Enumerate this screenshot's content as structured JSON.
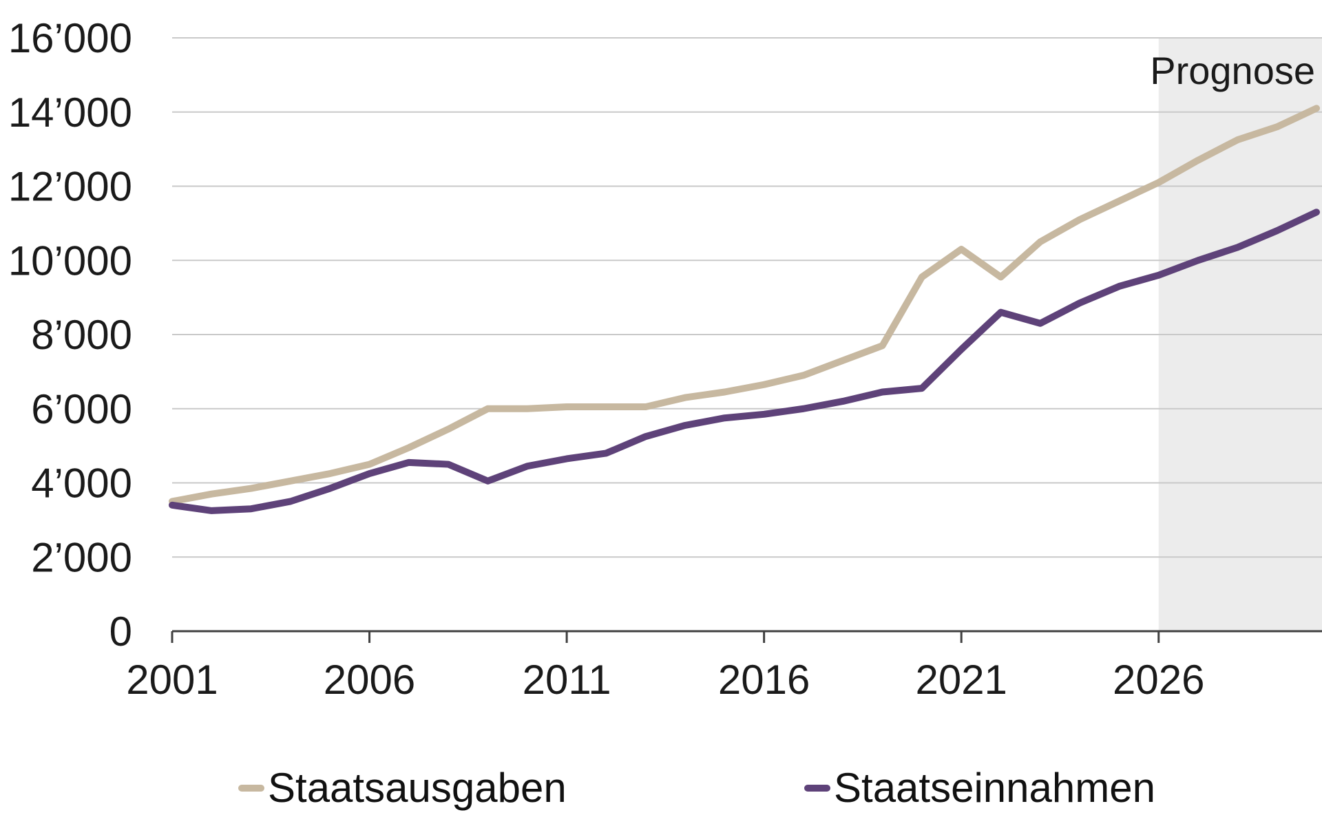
{
  "chart_data": {
    "type": "line",
    "title": "",
    "xlabel": "",
    "ylabel": "",
    "x": [
      2001,
      2002,
      2003,
      2004,
      2005,
      2006,
      2007,
      2008,
      2009,
      2010,
      2011,
      2012,
      2013,
      2014,
      2015,
      2016,
      2017,
      2018,
      2019,
      2020,
      2021,
      2022,
      2023,
      2024,
      2025,
      2026,
      2027,
      2028,
      2029,
      2030
    ],
    "series": [
      {
        "name": "Staatsausgaben",
        "color": "#c7b8a0",
        "values": [
          3500,
          3700,
          3850,
          4050,
          4250,
          4500,
          4950,
          5450,
          6000,
          6000,
          6050,
          6050,
          6050,
          6300,
          6450,
          6650,
          6900,
          7300,
          7700,
          9550,
          10300,
          9550,
          10500,
          11100,
          11600,
          12100,
          12700,
          13250,
          13600,
          14100
        ]
      },
      {
        "name": "Staatseinnahmen",
        "color": "#5e4279",
        "values": [
          3400,
          3250,
          3300,
          3500,
          3850,
          4250,
          4550,
          4500,
          4050,
          4450,
          4650,
          4800,
          5250,
          5550,
          5750,
          5850,
          6000,
          6200,
          6450,
          6550,
          7600,
          8600,
          8300,
          8850,
          9300,
          9600,
          10000,
          10350,
          10800,
          11300
        ]
      }
    ],
    "ylim": [
      0,
      16000
    ],
    "ytick_step": 2000,
    "ytick_labels": [
      "0",
      "2’000",
      "4’000",
      "6’000",
      "8’000",
      "10’000",
      "12’000",
      "14’000",
      "16’000"
    ],
    "xticks": [
      2001,
      2006,
      2011,
      2016,
      2021,
      2026
    ],
    "xtick_labels": [
      "2001",
      "2006",
      "2011",
      "2016",
      "2021",
      "2026"
    ],
    "forecast": {
      "label": "Prognose",
      "start": 2026,
      "fill": "#ececec"
    },
    "grid": true,
    "grid_color": "#c9c9c9",
    "axis_color": "#404040",
    "text_color": "#1a1a1a",
    "legend_position": "bottom"
  }
}
